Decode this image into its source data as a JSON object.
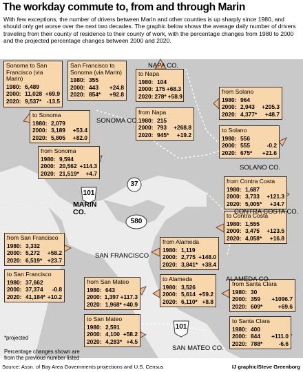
{
  "title": "The workday commute to, from and through Marin",
  "intro": "With few exceptions, the number of drivers between Marin and other counties is up sharply since 1980, and should only get worse over the next two decades. The graphic below shows the average daily number of drivers traveling from their county of residence to their county of work, with the percentage changes from 1980 to 2000 and the projected percentage changes between 2000 and 2020.",
  "boxes": [
    {
      "title": "Sonoma to San Francisco (via Marin)",
      "rows": [
        {
          "label": "1980:",
          "value": "6,489",
          "change": ""
        },
        {
          "label": "2000:",
          "value": "11,028",
          "change": "+69.9"
        },
        {
          "label": "2020:",
          "value": "9,537*",
          "change": "-13.5"
        }
      ]
    },
    {
      "title": "San Francisco to Sonoma (via Marin)",
      "rows": [
        {
          "label": "1980:",
          "value": "355",
          "change": ""
        },
        {
          "label": "2000:",
          "value": "443",
          "change": "+24.8"
        },
        {
          "label": "2020:",
          "value": "854*",
          "change": "+92.8"
        }
      ]
    },
    {
      "title": "to Napa",
      "rows": [
        {
          "label": "1980:",
          "value": "104",
          "change": ""
        },
        {
          "label": "2000:",
          "value": "175",
          "change": "+68.3"
        },
        {
          "label": "2020:",
          "value": "278*",
          "change": "+58.9"
        }
      ]
    },
    {
      "title": "from Solano",
      "rows": [
        {
          "label": "1980:",
          "value": "964",
          "change": ""
        },
        {
          "label": "2000:",
          "value": "2,943",
          "change": "+205.3"
        },
        {
          "label": "2020:",
          "value": "4,377*",
          "change": "+48.7"
        }
      ]
    },
    {
      "title": "from Napa",
      "rows": [
        {
          "label": "1980:",
          "value": "215",
          "change": ""
        },
        {
          "label": "2000:",
          "value": "793",
          "change": "+268.8"
        },
        {
          "label": "2020:",
          "value": "945*",
          "change": "+19.2"
        }
      ]
    },
    {
      "title": "to Solano",
      "rows": [
        {
          "label": "1980:",
          "value": "556",
          "change": ""
        },
        {
          "label": "2000:",
          "value": "555",
          "change": "-0.2"
        },
        {
          "label": "2020:",
          "value": "675*",
          "change": "+21.6"
        }
      ]
    },
    {
      "title": "to Sonoma",
      "rows": [
        {
          "label": "1980:",
          "value": "2,079",
          "change": ""
        },
        {
          "label": "2000:",
          "value": "3,189",
          "change": "+53.4"
        },
        {
          "label": "2020:",
          "value": "5,805",
          "change": "+82.0"
        }
      ]
    },
    {
      "title": "from Sonoma",
      "rows": [
        {
          "label": "1980:",
          "value": "9,594",
          "change": ""
        },
        {
          "label": "2000:",
          "value": "20,562",
          "change": "+114.3"
        },
        {
          "label": "2020:",
          "value": "21,519*",
          "change": "+4.7"
        }
      ]
    },
    {
      "title": "from Contra Costa",
      "rows": [
        {
          "label": "1980:",
          "value": "1,687",
          "change": ""
        },
        {
          "label": "2000:",
          "value": "3,733",
          "change": "+121.3"
        },
        {
          "label": "2020:",
          "value": "5,005*",
          "change": "+34.7"
        }
      ]
    },
    {
      "title": "to Contra Costa",
      "rows": [
        {
          "label": "1980:",
          "value": "1,555",
          "change": ""
        },
        {
          "label": "2000:",
          "value": "3,475",
          "change": "+123.5"
        },
        {
          "label": "2020:",
          "value": "4,058*",
          "change": "+16.8"
        }
      ]
    },
    {
      "title": "from San Francisco",
      "rows": [
        {
          "label": "1980:",
          "value": "3,332",
          "change": ""
        },
        {
          "label": "2000:",
          "value": "5,272",
          "change": "+58.2"
        },
        {
          "label": "2020:",
          "value": "6,519*",
          "change": "+23.7"
        }
      ]
    },
    {
      "title": "from Alameda",
      "rows": [
        {
          "label": "1980:",
          "value": "1,119",
          "change": ""
        },
        {
          "label": "2000:",
          "value": "2,775",
          "change": "+148.0"
        },
        {
          "label": "2020:",
          "value": "3,841*",
          "change": "+38.4"
        }
      ]
    },
    {
      "title": "to San Francisco",
      "rows": [
        {
          "label": "1980:",
          "value": "37,662",
          "change": ""
        },
        {
          "label": "2000:",
          "value": "37,374",
          "change": "-0.8"
        },
        {
          "label": "2020:",
          "value": "41,184*",
          "change": "+10.2"
        }
      ]
    },
    {
      "title": "from San Mateo",
      "rows": [
        {
          "label": "1980:",
          "value": "643",
          "change": ""
        },
        {
          "label": "2000:",
          "value": "1,397",
          "change": "+117.3"
        },
        {
          "label": "2020:",
          "value": "1,968*",
          "change": "+40.9"
        }
      ]
    },
    {
      "title": "to Alameda",
      "rows": [
        {
          "label": "1980:",
          "value": "3,526",
          "change": ""
        },
        {
          "label": "2000:",
          "value": "5,614",
          "change": "+59.2"
        },
        {
          "label": "2020:",
          "value": "6,110*",
          "change": "+8.8"
        }
      ]
    },
    {
      "title": "from Santa Clara",
      "rows": [
        {
          "label": "1980:",
          "value": "30",
          "change": ""
        },
        {
          "label": "2000:",
          "value": "359",
          "change": "+1096.7"
        },
        {
          "label": "2020:",
          "value": "609*",
          "change": "+69.6"
        }
      ]
    },
    {
      "title": "to San Mateo",
      "rows": [
        {
          "label": "1980:",
          "value": "2,591",
          "change": ""
        },
        {
          "label": "2000:",
          "value": "4,100",
          "change": "+58.2"
        },
        {
          "label": "2020:",
          "value": "4,283*",
          "change": "+4.5"
        }
      ]
    },
    {
      "title": "to Santa Clara",
      "rows": [
        {
          "label": "1980:",
          "value": "400",
          "change": ""
        },
        {
          "label": "2000:",
          "value": "844",
          "change": "+111.0"
        },
        {
          "label": "2020:",
          "value": "788*",
          "change": "-6.6"
        }
      ]
    }
  ],
  "counties": [
    "NAPA CO.",
    "SONOMA CO.",
    "SOLANO CO.",
    "MARIN CO.",
    "CONTRA COSTA CO.",
    "SAN FRANCISCO",
    "ALAMEDA CO.",
    "SAN MATEO CO."
  ],
  "highways": [
    "37",
    "101",
    "580",
    "101"
  ],
  "footnote": {
    "projected": "*projected",
    "note": "Percentage changes shown are from the previous number listed"
  },
  "source": "Source: Assn. of Bay Area Governments projections and U.S. Census",
  "credit": "IJ graphic/Steve Greenborg"
}
